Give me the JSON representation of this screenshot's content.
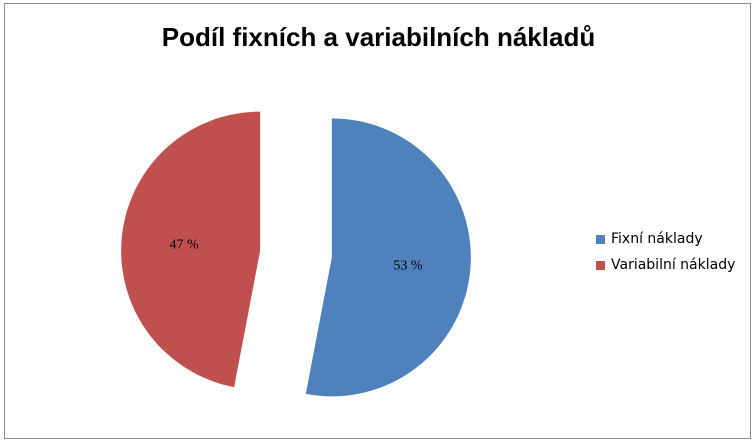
{
  "chart_data": {
    "type": "pie",
    "title": "Podíl fixních a variabilních nákladů",
    "slices": [
      {
        "name": "Fixní náklady",
        "value": 53,
        "label": "53 %",
        "color": "#4f81bd"
      },
      {
        "name": "Variabilní náklady",
        "value": 47,
        "label": "47 %",
        "color": "#c0504d"
      }
    ],
    "legend_position": "right",
    "exploded": true
  }
}
